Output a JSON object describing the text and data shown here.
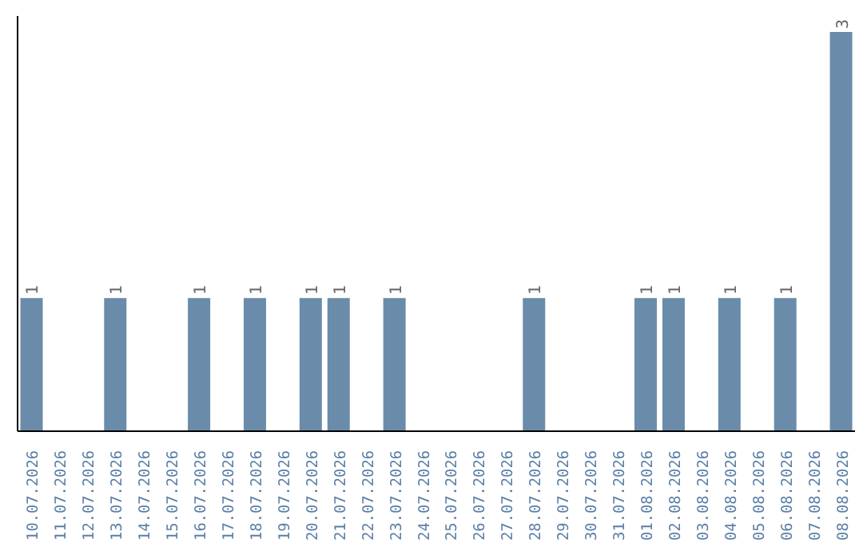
{
  "chart_data": {
    "type": "bar",
    "categories": [
      "10.07.2026",
      "11.07.2026",
      "12.07.2026",
      "13.07.2026",
      "14.07.2026",
      "15.07.2026",
      "16.07.2026",
      "17.07.2026",
      "18.07.2026",
      "19.07.2026",
      "20.07.2026",
      "21.07.2026",
      "22.07.2026",
      "23.07.2026",
      "24.07.2026",
      "25.07.2026",
      "26.07.2026",
      "27.07.2026",
      "28.07.2026",
      "29.07.2026",
      "30.07.2026",
      "31.07.2026",
      "01.08.2026",
      "02.08.2026",
      "03.08.2026",
      "04.08.2026",
      "05.08.2026",
      "06.08.2026",
      "07.08.2026",
      "08.08.2026"
    ],
    "values": [
      1,
      null,
      null,
      1,
      null,
      null,
      1,
      null,
      1,
      null,
      1,
      1,
      null,
      1,
      null,
      null,
      null,
      null,
      1,
      null,
      null,
      null,
      1,
      1,
      null,
      1,
      null,
      1,
      null,
      3
    ],
    "color": "#6a8caa",
    "data_labels": true,
    "grid": false,
    "legend": false
  }
}
